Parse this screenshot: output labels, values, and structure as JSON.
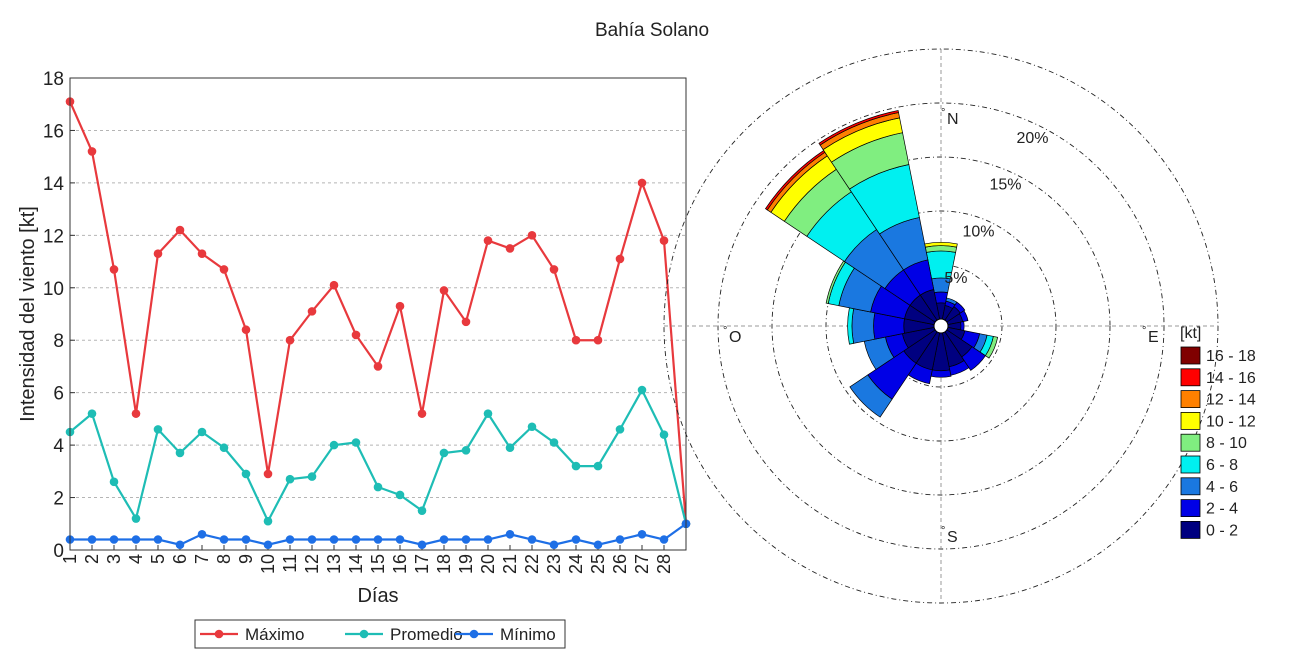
{
  "title": "Bahía Solano",
  "chart_data": [
    {
      "type": "line",
      "xlabel": "Días",
      "ylabel": "Intensidad del viento [kt]",
      "xlim": [
        1,
        29
      ],
      "ylim": [
        0,
        18
      ],
      "x_ticks": [
        1,
        2,
        3,
        4,
        5,
        6,
        7,
        8,
        9,
        10,
        11,
        12,
        13,
        14,
        15,
        16,
        17,
        18,
        19,
        20,
        21,
        22,
        23,
        24,
        25,
        26,
        27,
        28
      ],
      "y_ticks": [
        0,
        2,
        4,
        6,
        8,
        10,
        12,
        14,
        16,
        18
      ],
      "grid": "horizontal dashed",
      "legend_position": "bottom",
      "x": [
        1,
        2,
        3,
        4,
        5,
        6,
        7,
        8,
        9,
        10,
        11,
        12,
        13,
        14,
        15,
        16,
        17,
        18,
        19,
        20,
        21,
        22,
        23,
        24,
        25,
        26,
        27,
        28,
        29
      ],
      "series": [
        {
          "name": "Máximo",
          "color": "#e8393d",
          "values": [
            17.1,
            15.2,
            10.7,
            5.2,
            11.3,
            12.2,
            11.3,
            10.7,
            8.4,
            2.9,
            8.0,
            9.1,
            10.1,
            8.2,
            7.0,
            9.3,
            5.2,
            9.9,
            8.7,
            11.8,
            11.5,
            12.0,
            10.7,
            8.0,
            8.0,
            11.1,
            14.0,
            11.8,
            1.0
          ]
        },
        {
          "name": "Promedio",
          "color": "#1ebdb5",
          "values": [
            4.5,
            5.2,
            2.6,
            1.2,
            4.6,
            3.7,
            4.5,
            3.9,
            2.9,
            1.1,
            2.7,
            2.8,
            4.0,
            4.1,
            2.4,
            2.1,
            1.5,
            3.7,
            3.8,
            5.2,
            3.9,
            4.7,
            4.1,
            3.2,
            3.2,
            4.6,
            6.1,
            4.4,
            1.0
          ]
        },
        {
          "name": "Mínimo",
          "color": "#1e6fe6",
          "values": [
            0.4,
            0.4,
            0.4,
            0.4,
            0.4,
            0.2,
            0.6,
            0.4,
            0.4,
            0.2,
            0.4,
            0.4,
            0.4,
            0.4,
            0.4,
            0.4,
            0.2,
            0.4,
            0.4,
            0.4,
            0.6,
            0.4,
            0.2,
            0.4,
            0.2,
            0.4,
            0.6,
            0.4,
            1.0
          ]
        }
      ]
    },
    {
      "type": "wind-rose",
      "direction_labels": {
        "N": "N",
        "E": "E",
        "S": "S",
        "W": "O"
      },
      "ring_percent": [
        5,
        10,
        15,
        20,
        25
      ],
      "ring_labels": [
        "5%",
        "10%",
        "15%",
        "20%"
      ],
      "legend_title": "[kt]",
      "bins": [
        {
          "label": "0 - 2",
          "color": "#000080"
        },
        {
          "label": "2 - 4",
          "color": "#0000e6"
        },
        {
          "label": "4 - 6",
          "color": "#1a78e0"
        },
        {
          "label": "6 - 8",
          "color": "#00f0f0"
        },
        {
          "label": "8 - 10",
          "color": "#80ee80"
        },
        {
          "label": "10 - 12",
          "color": "#ffff00"
        },
        {
          "label": "12 - 14",
          "color": "#ff8000"
        },
        {
          "label": "14 - 16",
          "color": "#ff0000"
        },
        {
          "label": "16 - 18",
          "color": "#800000"
        }
      ],
      "sector_width_deg": 22.5,
      "sectors": [
        {
          "dir_deg": 0,
          "freq": [
            1.5,
            1.0,
            1.3,
            2.5,
            0.5,
            0.3
          ]
        },
        {
          "dir_deg": 22.5,
          "freq": [
            1.3,
            0.4,
            0.3
          ]
        },
        {
          "dir_deg": 45,
          "freq": [
            1.5,
            0.5
          ]
        },
        {
          "dir_deg": 67.5,
          "freq": [
            1.4,
            0.5
          ]
        },
        {
          "dir_deg": 90,
          "freq": [
            1.2,
            0.3
          ]
        },
        {
          "dir_deg": 112.5,
          "freq": [
            1.6,
            1.4,
            0.7,
            0.6,
            0.4
          ]
        },
        {
          "dir_deg": 135,
          "freq": [
            2.8,
            1.5
          ]
        },
        {
          "dir_deg": 157.5,
          "freq": [
            3.2,
            0.8
          ]
        },
        {
          "dir_deg": 180,
          "freq": [
            3.5,
            0.6
          ]
        },
        {
          "dir_deg": 202.5,
          "freq": [
            3.5,
            1.3
          ]
        },
        {
          "dir_deg": 225,
          "freq": [
            3.5,
            4.0,
            2.0
          ]
        },
        {
          "dir_deg": 247.5,
          "freq": [
            3.0,
            1.6,
            2.0
          ]
        },
        {
          "dir_deg": 270,
          "freq": [
            2.8,
            2.8,
            2.0,
            0.4
          ]
        },
        {
          "dir_deg": 292.5,
          "freq": [
            2.8,
            3.2,
            3.0,
            1.0,
            0.2
          ]
        },
        {
          "dir_deg": 315,
          "freq": [
            2.8,
            2.8,
            4.5,
            4.2,
            2.5,
            1.5,
            0.4,
            0.2
          ]
        },
        {
          "dir_deg": 337.5,
          "freq": [
            2.8,
            2.8,
            4.0,
            5.0,
            3.0,
            1.4,
            0.5,
            0.2
          ]
        }
      ]
    }
  ]
}
